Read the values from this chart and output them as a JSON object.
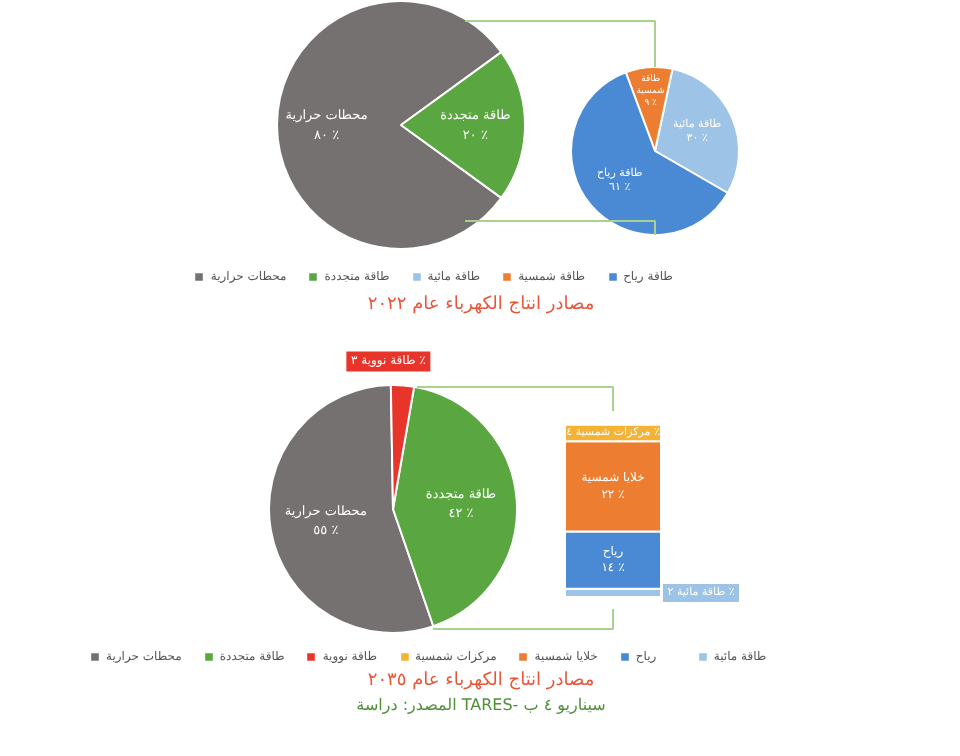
{
  "chart_data": [
    {
      "type": "pie",
      "title": "مصادر انتاج الكهرباء عام ٢٠٢٢",
      "categories": [
        "محطات حرارية",
        "طاقة متجددة"
      ],
      "values": [
        80,
        20
      ],
      "colors": [
        "#767171",
        "#5aa640"
      ],
      "value_labels": [
        "٨٠ ٪",
        "٢٠ ٪"
      ],
      "legend": "bottom"
    },
    {
      "type": "pie",
      "categories": [
        "طاقة مائية",
        "طاقة شمسية",
        "طاقة رياح"
      ],
      "values": [
        30,
        9,
        61
      ],
      "colors": [
        "#9dc3e6",
        "#ed7d31",
        "#4a8ad4"
      ],
      "value_labels": [
        "٣٠ ٪",
        "٩ ٪",
        "٦١ ٪"
      ],
      "legend": "bottom"
    },
    {
      "type": "pie",
      "title": "مصادر انتاج الكهرباء عام ٢٠٣٥",
      "annotations": [
        "المصدر: دراسة TARES- سيناريو ٤ ب"
      ],
      "categories": [
        "محطات حرارية",
        "طاقة متجددة",
        "طاقة نووية"
      ],
      "values": [
        55,
        42,
        3
      ],
      "colors": [
        "#767171",
        "#5aa640",
        "#e8352b"
      ],
      "value_labels": [
        "٥٥ ٪",
        "٤٢ ٪",
        "٣ ٪"
      ],
      "legend": "bottom"
    },
    {
      "type": "bar",
      "stacked": true,
      "categories": [
        null
      ],
      "legend": "bottom",
      "series": [
        {
          "name": "طاقة مائية",
          "color": "#9dc3e6",
          "values": [
            2
          ],
          "value_labels": [
            "٢ ٪"
          ]
        },
        {
          "name": "رياح",
          "color": "#4a8ad4",
          "values": [
            14
          ],
          "value_labels": [
            "١٤ ٪"
          ]
        },
        {
          "name": "خلايا شمسية",
          "color": "#ed7d31",
          "values": [
            22
          ],
          "value_labels": [
            "٢٢ ٪"
          ]
        },
        {
          "name": "مركزات شمسية",
          "color": "#f5b335",
          "values": [
            4
          ],
          "value_labels": [
            "٤ ٪"
          ]
        }
      ]
    }
  ]
}
